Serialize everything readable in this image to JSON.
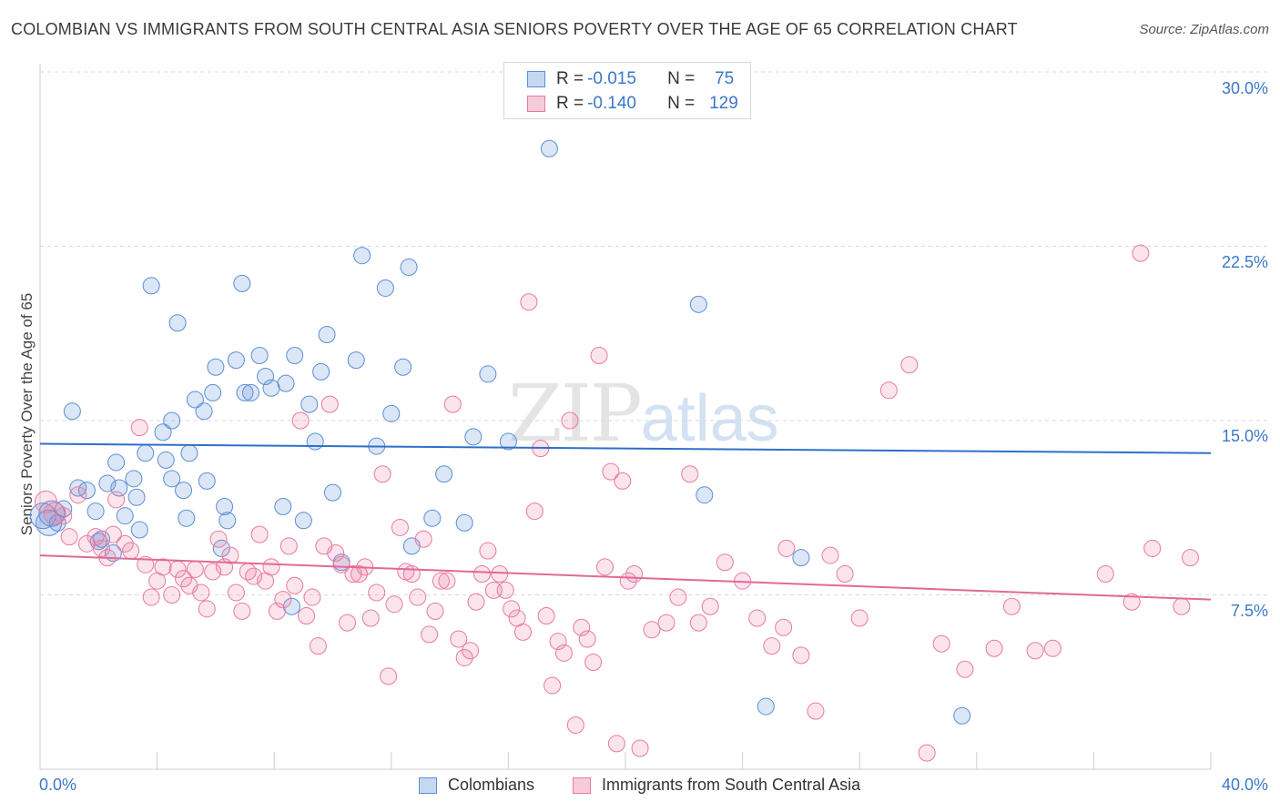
{
  "title": "COLOMBIAN VS IMMIGRANTS FROM SOUTH CENTRAL ASIA SENIORS POVERTY OVER THE AGE OF 65 CORRELATION CHART",
  "source": "Source: ZipAtlas.com",
  "watermark": {
    "zip": "ZIP",
    "atlas": "atlas"
  },
  "legend_stats": [
    {
      "r_label": "R =",
      "r_value": "-0.015",
      "n_label": "N =",
      "n_value": "75",
      "color": "#5b8fd6"
    },
    {
      "r_label": "R =",
      "r_value": "-0.140",
      "n_label": "N =",
      "n_value": "129",
      "color": "#e97aa0"
    }
  ],
  "chart_data": {
    "type": "scatter",
    "title": "COLOMBIAN VS IMMIGRANTS FROM SOUTH CENTRAL ASIA SENIORS POVERTY OVER THE AGE OF 65 CORRELATION CHART",
    "xlabel": "",
    "ylabel": "Seniors Poverty Over the Age of 65",
    "xlim": [
      0,
      40
    ],
    "ylim": [
      0,
      30
    ],
    "x_ticks": [
      "0.0%",
      "40.0%"
    ],
    "y_ticks": [
      "7.5%",
      "15.0%",
      "22.5%",
      "30.0%"
    ],
    "y_tick_values": [
      7.5,
      15,
      22.5,
      30
    ],
    "grid": true,
    "legend_position": "bottom",
    "series": [
      {
        "name": "Colombians",
        "color": "#5b8fd6",
        "trend": [
          [
            0,
            14.0
          ],
          [
            40,
            13.6
          ]
        ],
        "points": [
          [
            0.1,
            10.9
          ],
          [
            0.3,
            10.6
          ],
          [
            0.4,
            11.0
          ],
          [
            0.6,
            10.6
          ],
          [
            0.8,
            11.2
          ],
          [
            1.1,
            15.4
          ],
          [
            1.3,
            12.1
          ],
          [
            1.6,
            12.0
          ],
          [
            1.9,
            11.1
          ],
          [
            2.1,
            9.9
          ],
          [
            2.3,
            12.3
          ],
          [
            2.5,
            9.3
          ],
          [
            2.6,
            13.2
          ],
          [
            2.7,
            12.1
          ],
          [
            2.9,
            10.9
          ],
          [
            3.3,
            11.7
          ],
          [
            3.4,
            10.3
          ],
          [
            3.6,
            13.6
          ],
          [
            3.8,
            20.8
          ],
          [
            4.2,
            14.5
          ],
          [
            4.5,
            12.5
          ],
          [
            4.7,
            19.2
          ],
          [
            4.9,
            12.0
          ],
          [
            4.5,
            15.0
          ],
          [
            5.0,
            10.8
          ],
          [
            5.3,
            15.9
          ],
          [
            5.6,
            15.4
          ],
          [
            5.7,
            12.4
          ],
          [
            5.9,
            16.2
          ],
          [
            6.0,
            17.3
          ],
          [
            6.3,
            11.3
          ],
          [
            6.4,
            10.7
          ],
          [
            6.7,
            17.6
          ],
          [
            6.9,
            20.9
          ],
          [
            7.0,
            16.2
          ],
          [
            7.2,
            16.2
          ],
          [
            7.5,
            17.8
          ],
          [
            7.7,
            16.9
          ],
          [
            7.9,
            16.4
          ],
          [
            8.3,
            11.3
          ],
          [
            8.4,
            16.6
          ],
          [
            8.6,
            7.0
          ],
          [
            8.7,
            17.8
          ],
          [
            9.0,
            10.7
          ],
          [
            9.2,
            15.7
          ],
          [
            9.4,
            14.1
          ],
          [
            9.6,
            17.1
          ],
          [
            9.8,
            18.7
          ],
          [
            10.0,
            11.9
          ],
          [
            10.3,
            8.9
          ],
          [
            10.8,
            17.6
          ],
          [
            11.0,
            22.1
          ],
          [
            11.5,
            13.9
          ],
          [
            11.8,
            20.7
          ],
          [
            12.0,
            15.3
          ],
          [
            12.4,
            17.3
          ],
          [
            12.6,
            21.6
          ],
          [
            12.7,
            9.6
          ],
          [
            13.4,
            10.8
          ],
          [
            13.8,
            12.7
          ],
          [
            14.5,
            10.6
          ],
          [
            14.8,
            14.3
          ],
          [
            15.3,
            17.0
          ],
          [
            16.0,
            14.1
          ],
          [
            17.4,
            26.7
          ],
          [
            22.5,
            20.0
          ],
          [
            22.7,
            11.8
          ],
          [
            24.8,
            2.7
          ],
          [
            26.0,
            9.1
          ],
          [
            31.5,
            2.3
          ],
          [
            4.3,
            13.3
          ],
          [
            5.1,
            13.6
          ],
          [
            3.2,
            12.5
          ],
          [
            6.2,
            9.5
          ],
          [
            2.0,
            9.8
          ]
        ]
      },
      {
        "name": "Immigrants from South Central Asia",
        "color": "#e97aa0",
        "trend": [
          [
            0,
            9.2
          ],
          [
            40,
            7.3
          ]
        ],
        "points": [
          [
            0.2,
            11.5
          ],
          [
            0.5,
            11.0
          ],
          [
            0.8,
            10.9
          ],
          [
            1.0,
            10.0
          ],
          [
            1.3,
            11.8
          ],
          [
            1.6,
            9.7
          ],
          [
            1.9,
            10.0
          ],
          [
            2.1,
            9.5
          ],
          [
            2.3,
            9.1
          ],
          [
            2.5,
            10.1
          ],
          [
            2.6,
            11.6
          ],
          [
            2.9,
            9.7
          ],
          [
            3.1,
            9.4
          ],
          [
            3.4,
            14.7
          ],
          [
            3.6,
            8.8
          ],
          [
            3.8,
            7.4
          ],
          [
            4.0,
            8.1
          ],
          [
            4.2,
            8.7
          ],
          [
            4.5,
            7.5
          ],
          [
            4.7,
            8.6
          ],
          [
            4.9,
            8.2
          ],
          [
            5.1,
            7.9
          ],
          [
            5.3,
            8.6
          ],
          [
            5.5,
            7.6
          ],
          [
            5.7,
            6.9
          ],
          [
            5.9,
            8.5
          ],
          [
            6.1,
            9.9
          ],
          [
            6.3,
            8.7
          ],
          [
            6.5,
            9.2
          ],
          [
            6.7,
            7.6
          ],
          [
            6.9,
            6.8
          ],
          [
            7.1,
            8.5
          ],
          [
            7.3,
            8.3
          ],
          [
            7.5,
            10.1
          ],
          [
            7.7,
            8.1
          ],
          [
            7.9,
            8.7
          ],
          [
            8.1,
            6.8
          ],
          [
            8.3,
            7.3
          ],
          [
            8.5,
            9.6
          ],
          [
            8.7,
            7.9
          ],
          [
            8.9,
            15.0
          ],
          [
            9.1,
            6.6
          ],
          [
            9.3,
            7.4
          ],
          [
            9.5,
            5.3
          ],
          [
            9.7,
            9.6
          ],
          [
            9.9,
            15.7
          ],
          [
            10.1,
            9.3
          ],
          [
            10.3,
            8.8
          ],
          [
            10.5,
            6.3
          ],
          [
            10.7,
            8.4
          ],
          [
            10.9,
            8.4
          ],
          [
            11.1,
            8.7
          ],
          [
            11.3,
            6.5
          ],
          [
            11.5,
            7.6
          ],
          [
            11.7,
            12.7
          ],
          [
            11.9,
            4.0
          ],
          [
            12.1,
            7.1
          ],
          [
            12.3,
            10.4
          ],
          [
            12.5,
            8.5
          ],
          [
            12.7,
            8.4
          ],
          [
            12.9,
            7.4
          ],
          [
            13.1,
            9.9
          ],
          [
            13.3,
            5.8
          ],
          [
            13.5,
            6.8
          ],
          [
            13.7,
            8.1
          ],
          [
            13.9,
            8.1
          ],
          [
            14.1,
            15.7
          ],
          [
            14.3,
            5.6
          ],
          [
            14.5,
            4.8
          ],
          [
            14.7,
            5.1
          ],
          [
            14.9,
            7.2
          ],
          [
            15.1,
            8.4
          ],
          [
            15.3,
            9.4
          ],
          [
            15.5,
            7.7
          ],
          [
            15.7,
            8.4
          ],
          [
            15.9,
            7.7
          ],
          [
            16.1,
            6.9
          ],
          [
            16.3,
            6.5
          ],
          [
            16.5,
            5.9
          ],
          [
            16.7,
            20.1
          ],
          [
            16.9,
            11.1
          ],
          [
            17.1,
            13.8
          ],
          [
            17.3,
            6.6
          ],
          [
            17.5,
            3.6
          ],
          [
            17.7,
            5.5
          ],
          [
            17.9,
            5.0
          ],
          [
            18.1,
            15.0
          ],
          [
            18.3,
            1.9
          ],
          [
            18.5,
            6.1
          ],
          [
            18.7,
            5.6
          ],
          [
            18.9,
            4.6
          ],
          [
            19.1,
            17.8
          ],
          [
            19.3,
            8.7
          ],
          [
            19.5,
            12.8
          ],
          [
            19.7,
            1.1
          ],
          [
            19.9,
            12.4
          ],
          [
            20.1,
            8.1
          ],
          [
            20.3,
            8.4
          ],
          [
            20.5,
            0.9
          ],
          [
            20.9,
            6.0
          ],
          [
            21.4,
            6.3
          ],
          [
            21.8,
            7.4
          ],
          [
            22.2,
            12.7
          ],
          [
            22.5,
            6.3
          ],
          [
            22.9,
            7.0
          ],
          [
            23.4,
            8.9
          ],
          [
            24.0,
            8.1
          ],
          [
            24.5,
            6.5
          ],
          [
            25.0,
            5.3
          ],
          [
            25.5,
            9.5
          ],
          [
            26.0,
            4.9
          ],
          [
            26.5,
            2.5
          ],
          [
            27.0,
            9.2
          ],
          [
            27.5,
            8.4
          ],
          [
            28.0,
            6.5
          ],
          [
            29.0,
            16.3
          ],
          [
            29.7,
            17.4
          ],
          [
            30.3,
            0.7
          ],
          [
            30.8,
            5.4
          ],
          [
            31.6,
            4.3
          ],
          [
            32.6,
            5.2
          ],
          [
            33.2,
            7.0
          ],
          [
            34.0,
            5.1
          ],
          [
            34.6,
            5.2
          ],
          [
            36.4,
            8.4
          ],
          [
            37.3,
            7.2
          ],
          [
            37.6,
            22.2
          ],
          [
            38.0,
            9.5
          ],
          [
            39.0,
            7.0
          ],
          [
            39.3,
            9.1
          ],
          [
            25.4,
            6.1
          ]
        ]
      }
    ]
  },
  "bottom_legend": [
    {
      "label": "Colombians",
      "color": "#5b8fd6"
    },
    {
      "label": "Immigrants from South Central Asia",
      "color": "#e97aa0"
    }
  ]
}
